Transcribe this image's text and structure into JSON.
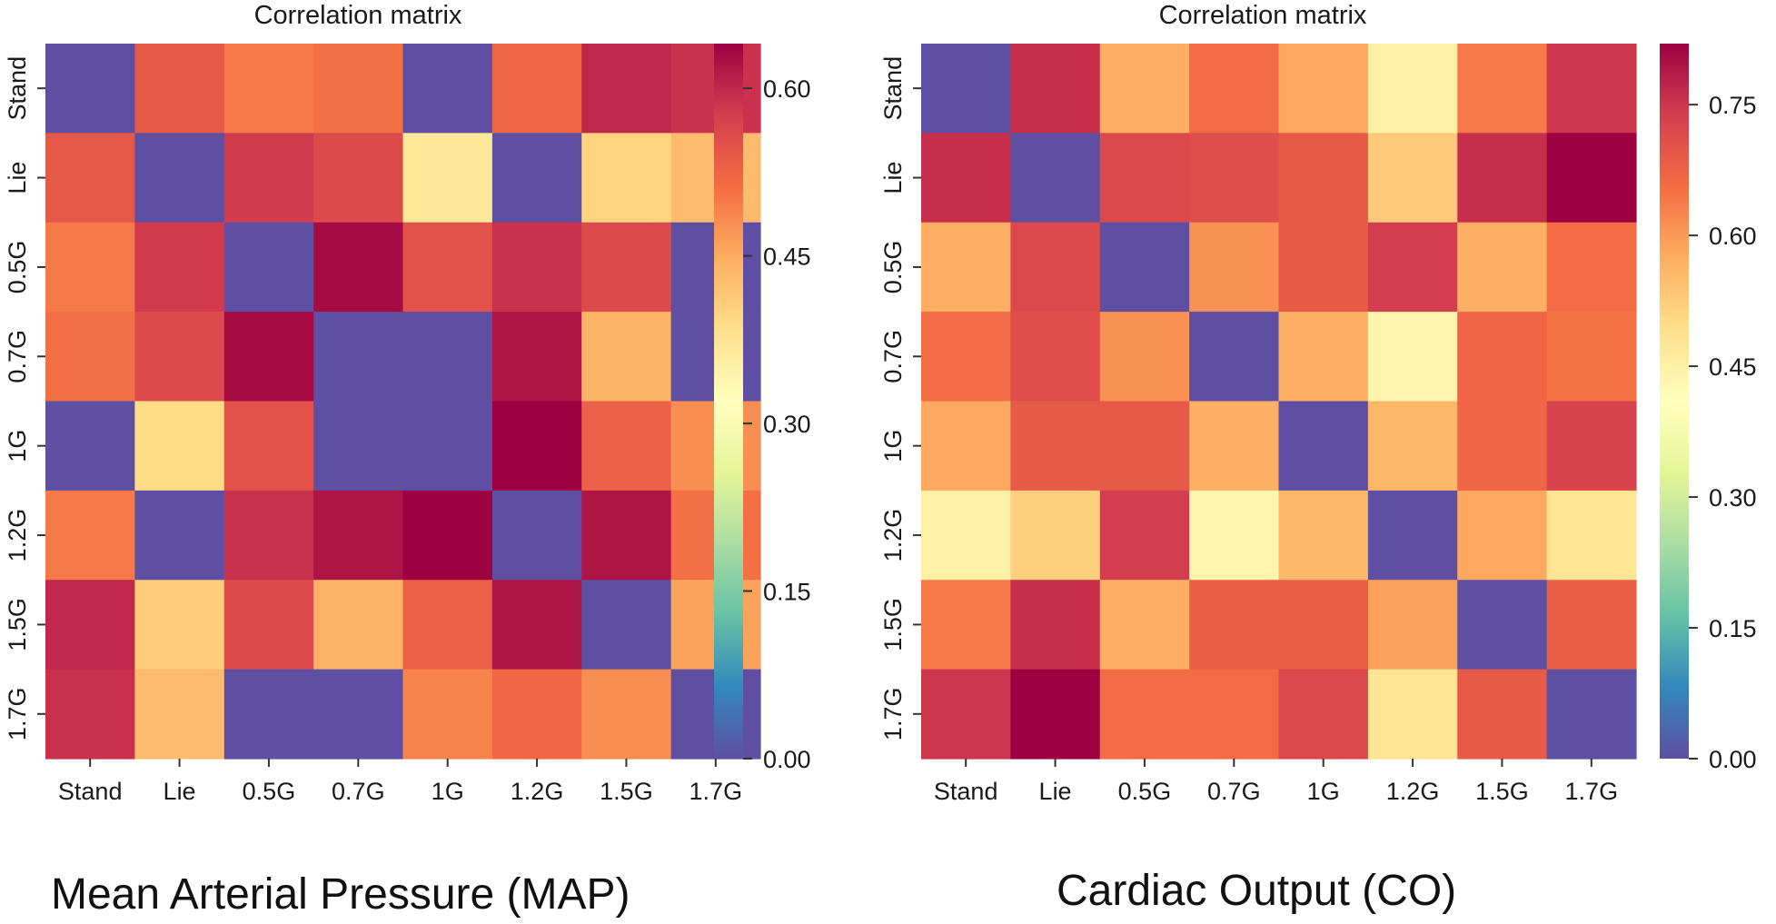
{
  "chart_data": [
    {
      "type": "heatmap",
      "title": "Correlation matrix",
      "caption": "Mean Arterial Pressure (MAP)",
      "x_categories": [
        "Stand",
        "Lie",
        "0.5G",
        "0.7G",
        "1G",
        "1.2G",
        "1.5G",
        "1.7G"
      ],
      "y_categories": [
        "Stand",
        "Lie",
        "0.5G",
        "0.7G",
        "1G",
        "1.2G",
        "1.5G",
        "1.7G"
      ],
      "colorbar_ticks": [
        "0.00",
        "0.15",
        "0.30",
        "0.45",
        "0.60"
      ],
      "vmin": 0.0,
      "vmax": 0.64,
      "colormap": "Spectral_r",
      "values": [
        [
          0.0,
          0.54,
          0.5,
          0.51,
          0.0,
          0.52,
          0.6,
          0.59
        ],
        [
          0.54,
          0.0,
          0.58,
          0.56,
          0.37,
          0.0,
          0.4,
          0.43
        ],
        [
          0.5,
          0.58,
          0.0,
          0.63,
          0.55,
          0.59,
          0.56,
          0.0
        ],
        [
          0.51,
          0.56,
          0.63,
          0.0,
          0.0,
          0.62,
          0.44,
          0.0
        ],
        [
          0.0,
          0.39,
          0.55,
          0.0,
          0.0,
          0.64,
          0.53,
          0.48
        ],
        [
          0.5,
          0.0,
          0.59,
          0.62,
          0.64,
          0.0,
          0.62,
          0.51
        ],
        [
          0.6,
          0.41,
          0.56,
          0.44,
          0.53,
          0.62,
          0.0,
          0.46
        ],
        [
          0.59,
          0.43,
          0.0,
          0.0,
          0.49,
          0.52,
          0.48,
          0.0
        ]
      ]
    },
    {
      "type": "heatmap",
      "title": "Correlation matrix",
      "caption": "Cardiac Output (CO)",
      "x_categories": [
        "Stand",
        "Lie",
        "0.5G",
        "0.7G",
        "1G",
        "1.2G",
        "1.5G",
        "1.7G"
      ],
      "y_categories": [
        "Stand",
        "Lie",
        "0.5G",
        "0.7G",
        "1G",
        "1.2G",
        "1.5G",
        "1.7G"
      ],
      "colorbar_ticks": [
        "0.00",
        "0.15",
        "0.30",
        "0.45",
        "0.60",
        "0.75"
      ],
      "vmin": 0.0,
      "vmax": 0.82,
      "colormap": "Spectral_r",
      "values": [
        [
          0.0,
          0.76,
          0.57,
          0.66,
          0.58,
          0.45,
          0.64,
          0.75
        ],
        [
          0.76,
          0.0,
          0.72,
          0.71,
          0.69,
          0.53,
          0.76,
          0.82
        ],
        [
          0.57,
          0.72,
          0.0,
          0.61,
          0.69,
          0.74,
          0.57,
          0.66
        ],
        [
          0.66,
          0.71,
          0.61,
          0.0,
          0.57,
          0.44,
          0.67,
          0.65
        ],
        [
          0.58,
          0.69,
          0.69,
          0.57,
          0.0,
          0.56,
          0.67,
          0.73
        ],
        [
          0.45,
          0.52,
          0.74,
          0.44,
          0.56,
          0.0,
          0.58,
          0.48
        ],
        [
          0.64,
          0.76,
          0.57,
          0.68,
          0.68,
          0.59,
          0.0,
          0.68
        ],
        [
          0.75,
          0.82,
          0.66,
          0.66,
          0.72,
          0.48,
          0.69,
          0.0
        ]
      ]
    }
  ]
}
